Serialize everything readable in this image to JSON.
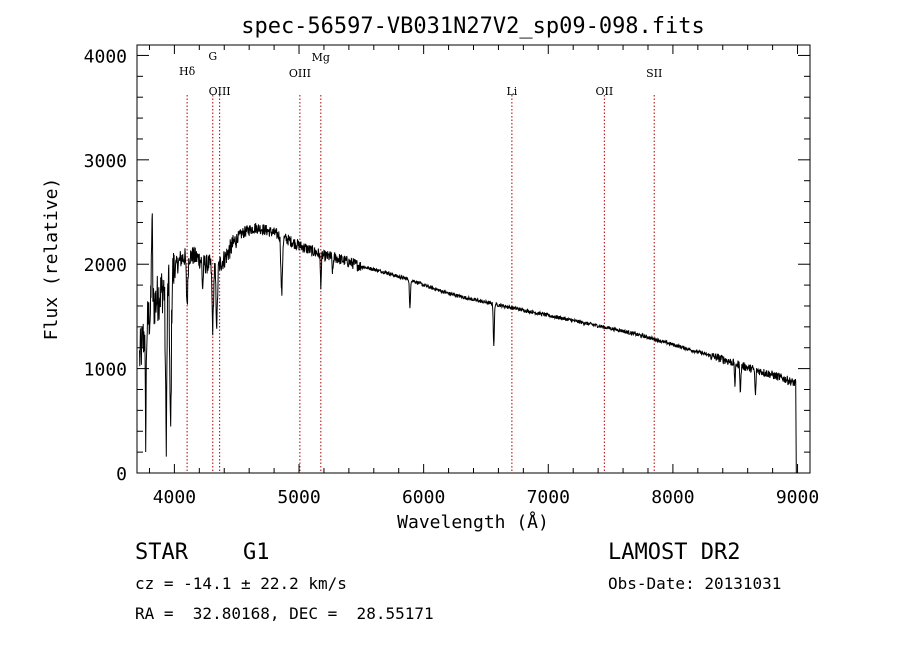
{
  "chart_data": {
    "type": "line",
    "title": "spec-56597-VB031N27V2_sp09-098.fits",
    "xlabel": "Wavelength (Å)",
    "ylabel": "Flux (relative)",
    "xlim": [
      3700,
      9100
    ],
    "ylim": [
      0,
      4100
    ],
    "x_ticks": [
      4000,
      5000,
      6000,
      7000,
      8000,
      9000
    ],
    "y_ticks": [
      0,
      1000,
      2000,
      3000,
      4000
    ],
    "grid": false,
    "lines": [
      {
        "label": "Hδ",
        "wavelength": 4102
      },
      {
        "label": "G",
        "wavelength": 4308
      },
      {
        "label": "OIII",
        "wavelength": 4363
      },
      {
        "label": "OIII",
        "wavelength": 5007
      },
      {
        "label": "Mg",
        "wavelength": 5175
      },
      {
        "label": "Li",
        "wavelength": 6708
      },
      {
        "label": "OII",
        "wavelength": 7450
      },
      {
        "label": "SII",
        "wavelength": 7850
      }
    ],
    "continuum": [
      [
        3720,
        1100
      ],
      [
        3760,
        1350
      ],
      [
        3800,
        1500
      ],
      [
        3850,
        1650
      ],
      [
        3900,
        1750
      ],
      [
        3950,
        1850
      ],
      [
        4000,
        1950
      ],
      [
        4050,
        2050
      ],
      [
        4100,
        2080
      ],
      [
        4150,
        2080
      ],
      [
        4200,
        2050
      ],
      [
        4250,
        2000
      ],
      [
        4300,
        2000
      ],
      [
        4350,
        1980
      ],
      [
        4400,
        2050
      ],
      [
        4450,
        2150
      ],
      [
        4500,
        2250
      ],
      [
        4550,
        2300
      ],
      [
        4600,
        2330
      ],
      [
        4650,
        2350
      ],
      [
        4700,
        2340
      ],
      [
        4750,
        2320
      ],
      [
        4800,
        2300
      ],
      [
        4850,
        2270
      ],
      [
        4900,
        2240
      ],
      [
        4950,
        2210
      ],
      [
        5000,
        2180
      ],
      [
        5100,
        2130
      ],
      [
        5200,
        2080
      ],
      [
        5300,
        2060
      ],
      [
        5400,
        2020
      ],
      [
        5500,
        1980
      ],
      [
        5600,
        1950
      ],
      [
        5700,
        1920
      ],
      [
        5800,
        1880
      ],
      [
        5900,
        1850
      ],
      [
        6000,
        1800
      ],
      [
        6200,
        1720
      ],
      [
        6400,
        1660
      ],
      [
        6600,
        1610
      ],
      [
        6800,
        1560
      ],
      [
        7000,
        1510
      ],
      [
        7200,
        1460
      ],
      [
        7400,
        1410
      ],
      [
        7600,
        1360
      ],
      [
        7800,
        1300
      ],
      [
        8000,
        1230
      ],
      [
        8200,
        1160
      ],
      [
        8400,
        1090
      ],
      [
        8600,
        1010
      ],
      [
        8800,
        940
      ],
      [
        8900,
        900
      ],
      [
        8980,
        860
      ]
    ],
    "absorption_features": [
      [
        3934,
        1450
      ],
      [
        3969,
        1500
      ],
      [
        4102,
        450
      ],
      [
        4227,
        250
      ],
      [
        4308,
        600
      ],
      [
        4340,
        550
      ],
      [
        4861,
        550
      ],
      [
        5175,
        280
      ],
      [
        5270,
        150
      ],
      [
        5890,
        280
      ],
      [
        6563,
        400
      ],
      [
        8498,
        200
      ],
      [
        8542,
        250
      ],
      [
        8662,
        250
      ]
    ],
    "spikes": [
      [
        3820,
        900
      ],
      [
        3770,
        -1000
      ]
    ]
  },
  "info": {
    "object_type": "STAR",
    "subclass": "G1",
    "survey": "LAMOST DR2",
    "redshift": "cz = -14.1 ± 22.2 km/s",
    "obs_date": "Obs-Date: 20131031",
    "coords": "RA =  32.80168, DEC =  28.55171"
  }
}
